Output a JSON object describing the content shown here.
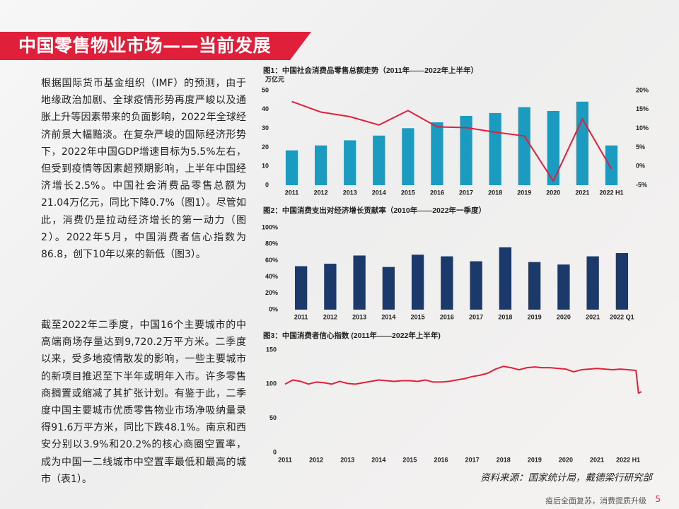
{
  "header": {
    "title": "中国零售物业市场——当前发展"
  },
  "body": {
    "paragraphs": [
      "根据国际货币基金组织（IMF）的预测，由于地缘政治加剧、全球疫情形势再度严峻以及通胀上升等因素带来的负面影响，2022年全球经济前景大幅黯淡。在复杂严峻的国际经济形势下，2022年中国GDP增速目标为5.5%左右，但受到疫情等因素超预期影响，上半年中国经济增长2.5%。中国社会消费品零售总额为21.04万亿元，同比下降0.7%（图1）。尽管如此，消费仍是拉动经济增长的第一动力（图2）。2022年5月，中国消费者信心指数为86.8，创下10年以来的新低（图3）。",
      "截至2022年二季度，中国16个主要城市的中高端商场存量达到9,720.2万平方米。二季度以来，受多地疫情散发的影响，一些主要城市的新项目推迟至下半年或明年入市。许多零售商搁置或缩减了其扩张计划。有鉴于此，二季度中国主要城市优质零售物业市场净吸纳量录得91.6万平方米，同比下跌48.1%。南京和西安分别以3.9%和20.2%的核心商圈空置率，成为中国一二线城市中空置率最低和最高的城市（表1）。"
    ]
  },
  "chart_data": [
    {
      "type": "combo",
      "title": "图1：中国社会消费品零售总额走势（2011年——2022年上半年）",
      "y_label": "万亿元",
      "categories": [
        "2011",
        "2012",
        "2013",
        "2014",
        "2015",
        "2016",
        "2017",
        "2018",
        "2019",
        "2020",
        "2021",
        "2022 H1"
      ],
      "series": [
        {
          "type": "bar",
          "color": "#1a9bbf",
          "values": [
            18.4,
            21.0,
            23.7,
            26.2,
            30.1,
            33.2,
            36.6,
            38.1,
            41.2,
            39.2,
            44.1,
            21.0
          ]
        },
        {
          "type": "line",
          "axis": "y2",
          "color": "#e0203a",
          "values": [
            17.1,
            14.3,
            13.1,
            10.9,
            14.7,
            10.4,
            10.2,
            9.0,
            8.0,
            -3.9,
            12.5,
            -0.7
          ]
        }
      ],
      "ylim": [
        0,
        50
      ],
      "yticks": [
        0,
        10,
        20,
        30,
        40,
        50
      ],
      "y2lim": [
        -5,
        20
      ],
      "y2ticks": [
        {
          "value": -5,
          "label": "-5%"
        },
        {
          "value": 0,
          "label": "0%"
        },
        {
          "value": 5,
          "label": "5%"
        },
        {
          "value": 10,
          "label": "10%"
        },
        {
          "value": 15,
          "label": "15%"
        },
        {
          "value": 20,
          "label": "20%"
        }
      ]
    },
    {
      "type": "bar",
      "title": "图2：中国消费支出对经济增长贡献率（2010年——2022年一季度）",
      "categories": [
        "2011",
        "2012",
        "2013",
        "2014",
        "2015",
        "2016",
        "2017",
        "2018",
        "2019",
        "2020",
        "2021",
        "2022 Q1"
      ],
      "series": [
        {
          "type": "bar",
          "color": "#1b3a6b",
          "values": [
            53,
            56,
            66,
            52,
            67,
            65,
            59,
            76,
            58,
            55,
            65,
            69
          ]
        }
      ],
      "ylim": [
        0,
        100
      ],
      "yticks": [
        {
          "value": 0,
          "label": "0%"
        },
        {
          "value": 20,
          "label": "20%"
        },
        {
          "value": 40,
          "label": "40%"
        },
        {
          "value": 60,
          "label": "60%"
        },
        {
          "value": 80,
          "label": "80%"
        },
        {
          "value": 100,
          "label": "100%"
        }
      ]
    },
    {
      "type": "line",
      "title": "图3：中国消费者信心指数 (2011年——2022年上半年)",
      "x": [
        2011,
        2011.25,
        2011.5,
        2011.75,
        2012,
        2012.25,
        2012.5,
        2012.75,
        2013,
        2013.25,
        2013.5,
        2013.75,
        2014,
        2014.25,
        2014.5,
        2014.75,
        2015,
        2015.25,
        2015.5,
        2015.75,
        2016,
        2016.25,
        2016.5,
        2016.75,
        2017,
        2017.25,
        2017.5,
        2017.75,
        2018,
        2018.25,
        2018.5,
        2018.75,
        2019,
        2019.25,
        2019.5,
        2019.75,
        2020,
        2020.25,
        2020.5,
        2020.75,
        2021,
        2021.25,
        2021.5,
        2021.75,
        2022,
        2022.25,
        2022.33,
        2022.42
      ],
      "series": [
        {
          "type": "line",
          "color": "#e0203a",
          "values": [
            100,
            106,
            104,
            100,
            103,
            102,
            100,
            104,
            101,
            100,
            102,
            104,
            106,
            105,
            104,
            105,
            105,
            104,
            106,
            103,
            103,
            104,
            106,
            108,
            111,
            113,
            116,
            122,
            126,
            124,
            121,
            124,
            125,
            124,
            124,
            123,
            122,
            118,
            121,
            122,
            123,
            122,
            121,
            122,
            121,
            120,
            86.8,
            88.9
          ]
        }
      ],
      "xlim": [
        2011,
        2022.45
      ],
      "xticks": [
        2011,
        2012,
        2013,
        2014,
        2015,
        2016,
        2017,
        2018,
        2019,
        2020,
        2021,
        {
          "value": 2022,
          "label": "2022 H1"
        }
      ],
      "ylim": [
        0,
        150
      ],
      "yticks": [
        0,
        50,
        100,
        150
      ]
    }
  ],
  "source": "资料来源：国家统计局，戴德梁行研究部",
  "footer": {
    "text": "疫后全面复苏，消费提质升级",
    "page": "5"
  }
}
